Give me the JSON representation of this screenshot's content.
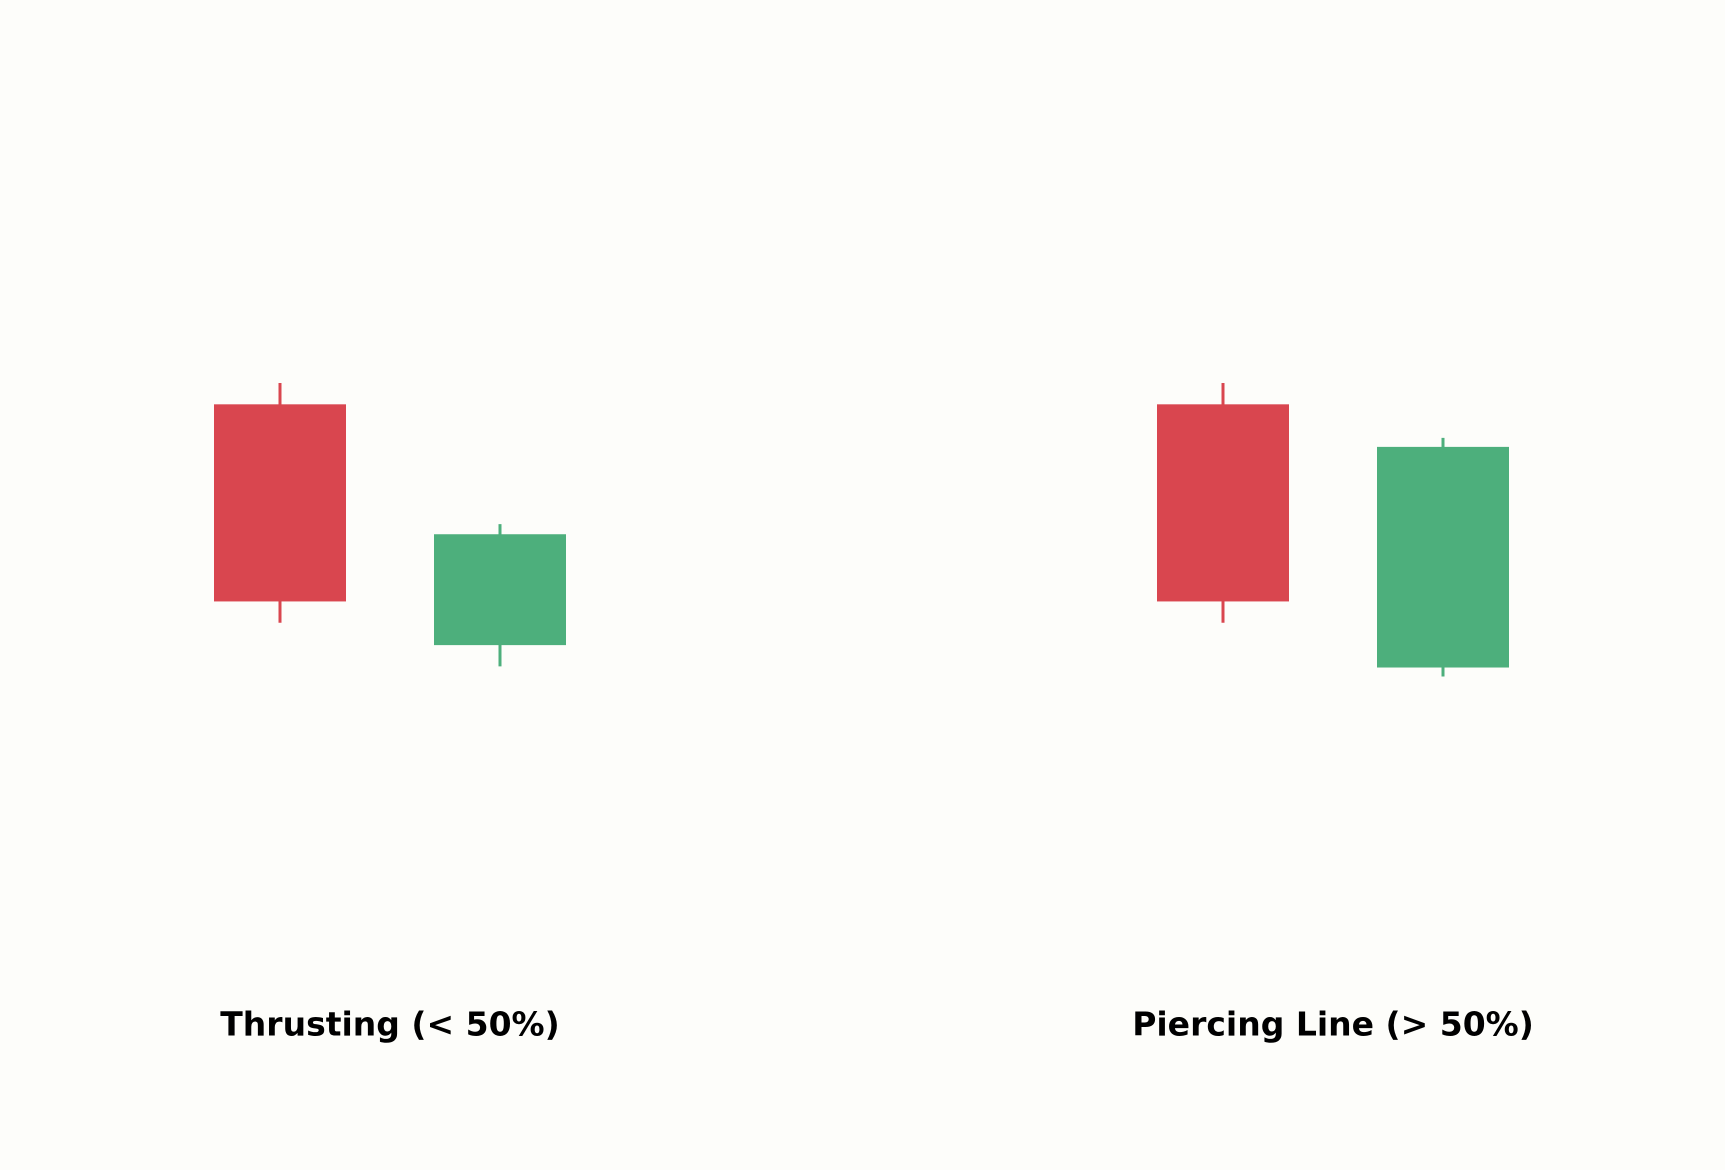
{
  "chart_data": [
    {
      "type": "candlestick",
      "title": "Thrusting (< 50%)",
      "open": [
        33.9,
        12.4
      ],
      "high": [
        35.8,
        23.2
      ],
      "low": [
        14.4,
        10.5
      ],
      "close": [
        16.3,
        22.3
      ],
      "up_color": "#4daf7c",
      "down_color": "#d9464f",
      "ylim": [
        0,
        70
      ]
    },
    {
      "type": "candlestick",
      "title": "Piercing Line (> 50%)",
      "open": [
        33.9,
        10.4
      ],
      "high": [
        35.8,
        30.9
      ],
      "low": [
        14.4,
        9.6
      ],
      "close": [
        16.3,
        30.1
      ],
      "up_color": "#4daf7c",
      "down_color": "#d9464f",
      "ylim": [
        0,
        70
      ]
    }
  ]
}
